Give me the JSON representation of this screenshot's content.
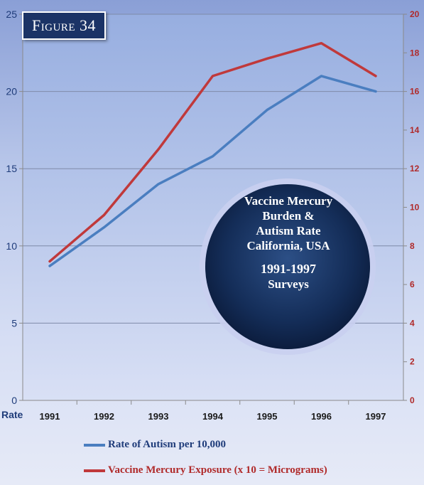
{
  "figure_label": "Figure 34",
  "annotation": {
    "lines": [
      "Vaccine Mercury",
      "Burden &",
      "Autism Rate",
      "California, USA"
    ],
    "years": "1991-1997",
    "surveys": "Surveys"
  },
  "chart_data": {
    "type": "line",
    "categories": [
      "1991",
      "1992",
      "1993",
      "1994",
      "1995",
      "1996",
      "1997"
    ],
    "xlabel": "",
    "ylabel": "Rate",
    "ylim": [
      0,
      25
    ],
    "y2lim": [
      0,
      20
    ],
    "yticks": [
      0,
      5,
      10,
      15,
      20,
      25
    ],
    "y2ticks": [
      0,
      2,
      4,
      6,
      8,
      10,
      12,
      14,
      16,
      18,
      20
    ],
    "grid": true,
    "legend": "bottom",
    "series": [
      {
        "name": "Rate of Autism per 10,000",
        "axis": "left",
        "color": "#4a7ec0",
        "values": [
          8.7,
          11.2,
          14.0,
          15.8,
          18.8,
          21.0,
          20.0
        ]
      },
      {
        "name": "Vaccine Mercury Exposure (x 10 = Micrograms)",
        "axis": "right",
        "color": "#c0393b",
        "values": [
          7.2,
          9.6,
          13.0,
          16.8,
          17.7,
          18.5,
          16.8
        ]
      }
    ]
  }
}
